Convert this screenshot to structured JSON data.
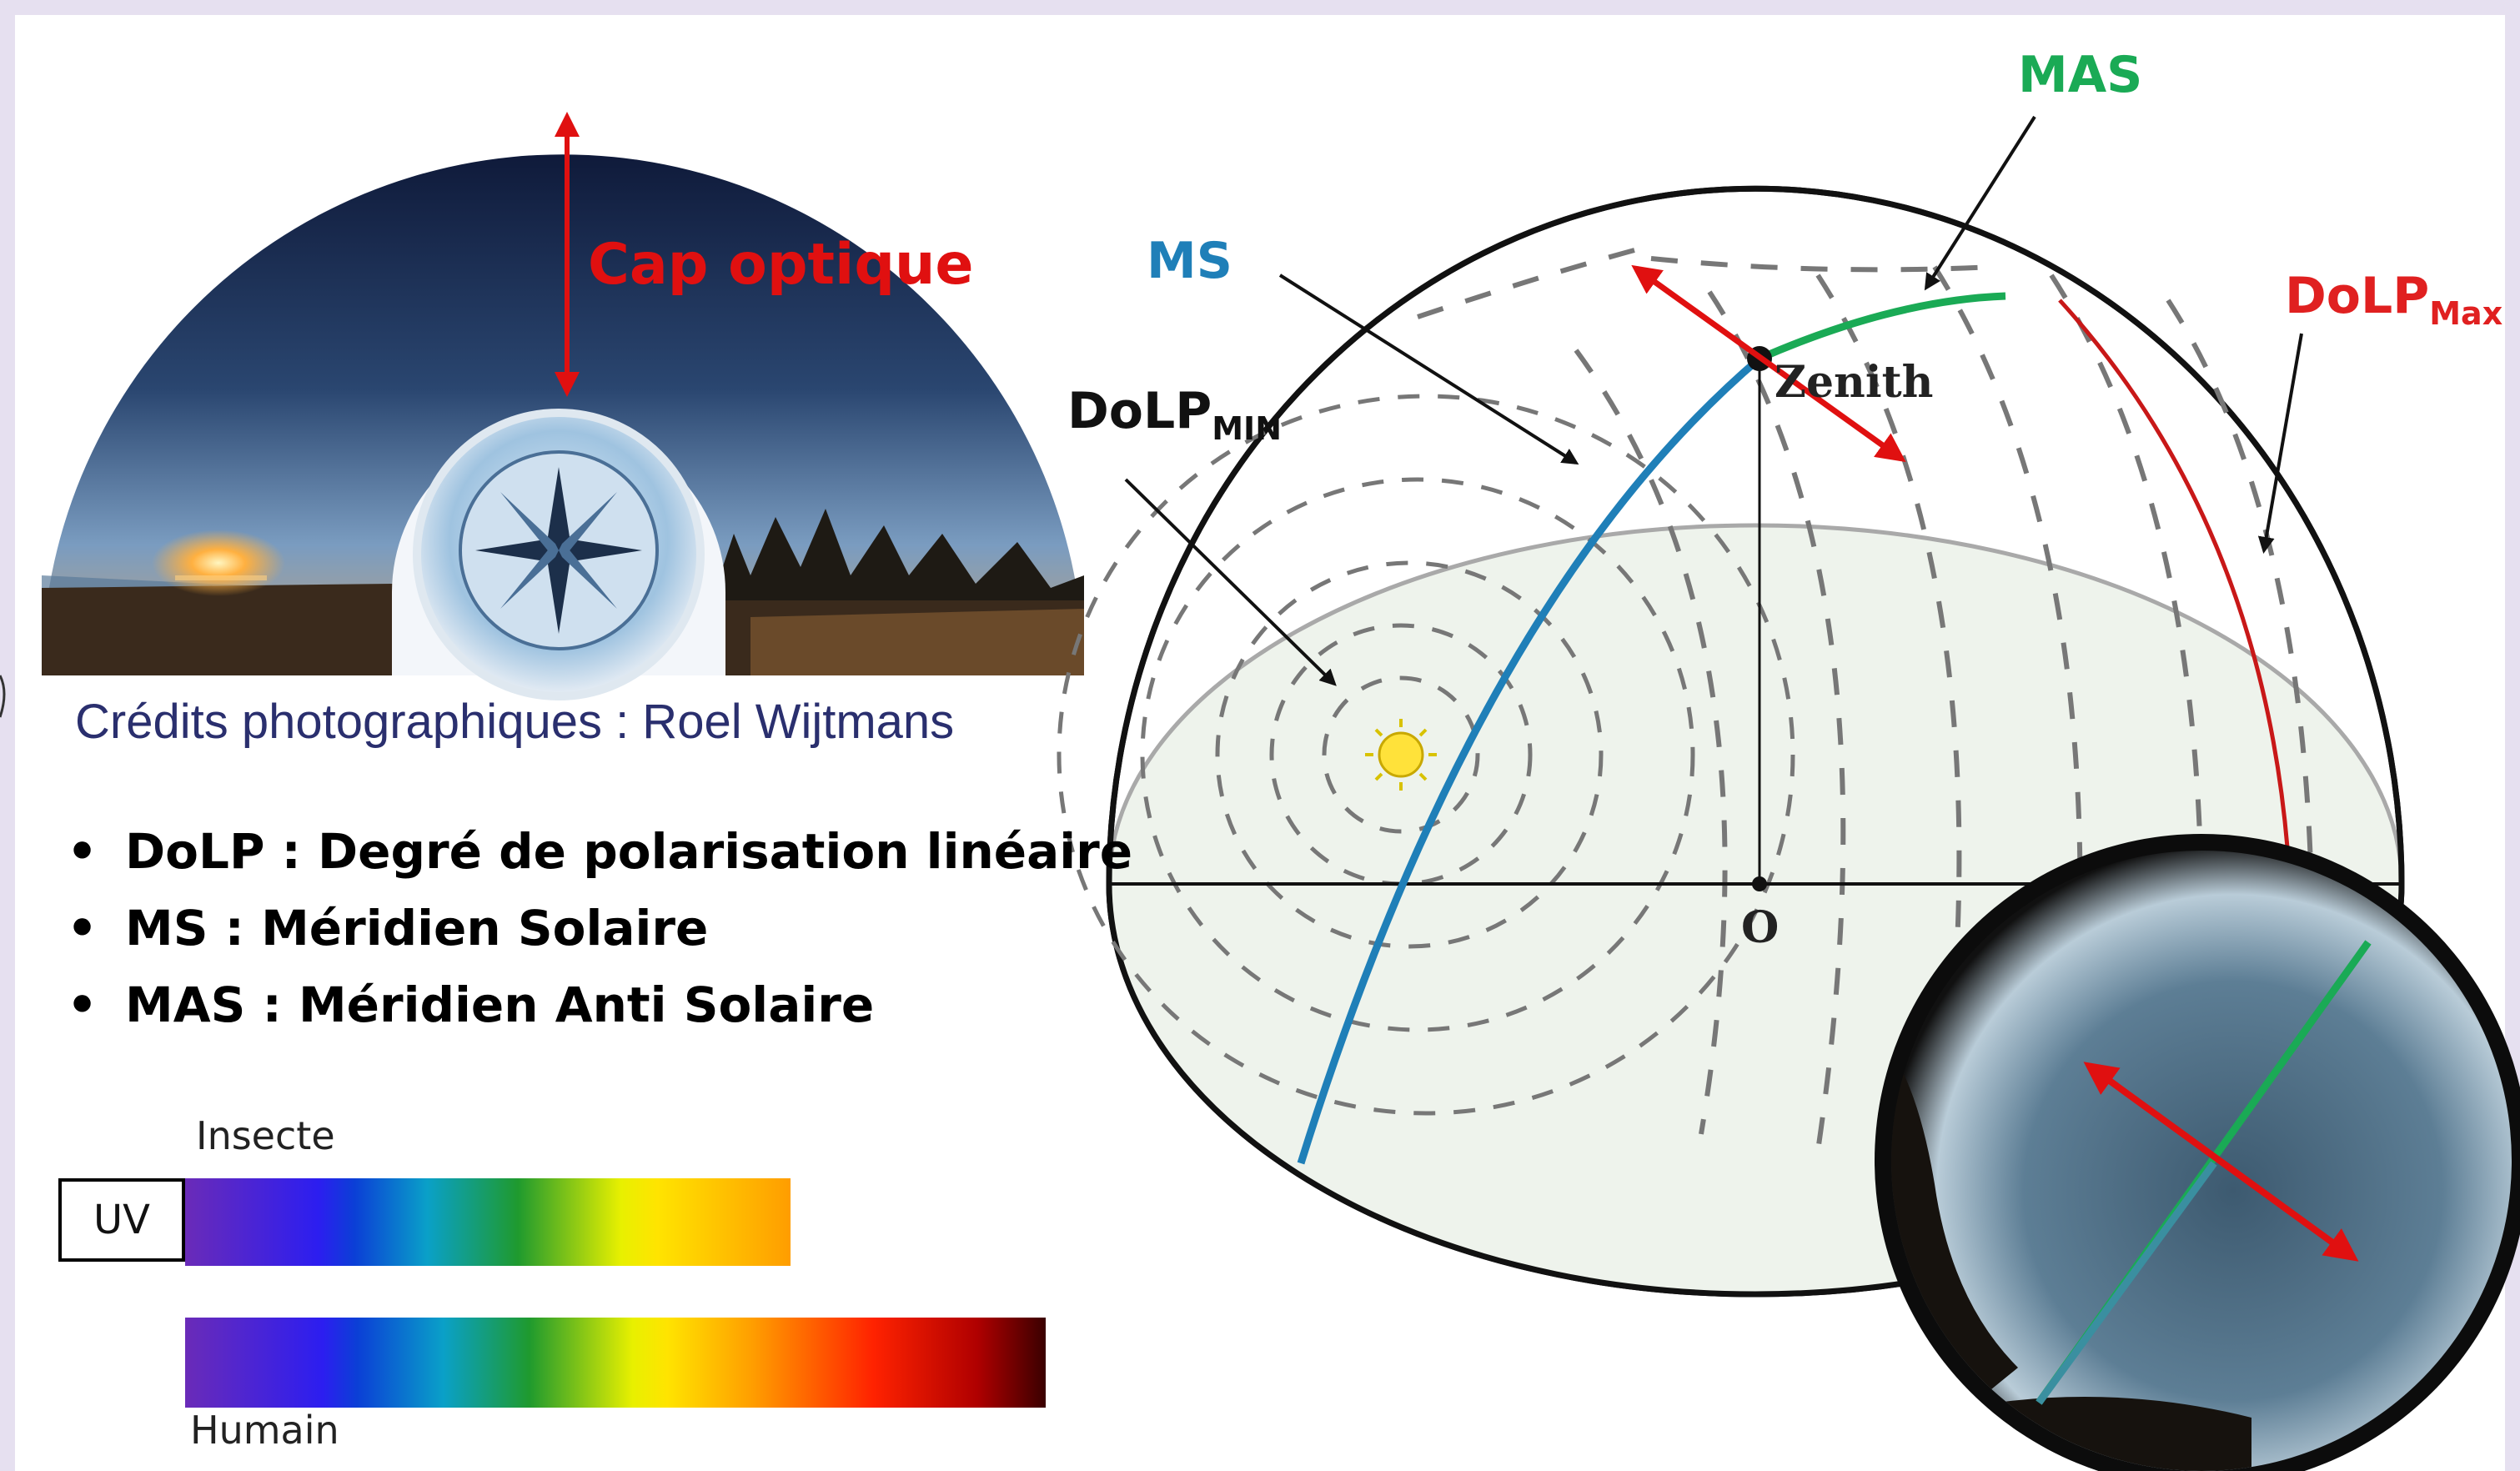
{
  "photo": {
    "cap_label": "Cap optique",
    "credits": "Crédits photographiques : Roel Wijtmans"
  },
  "definitions": [
    "DoLP : Degré de polarisation linéaire",
    "MS : Méridien Solaire",
    "MAS : Méridien Anti Solaire"
  ],
  "spectrum": {
    "insect_label": "Insecte",
    "uv_label": "UV",
    "human_label": "Humain"
  },
  "sky_diagram": {
    "ms_label": "MS",
    "mas_label": "MAS",
    "dolp_max": {
      "base": "DoLP",
      "sub": "Max"
    },
    "dolp_min": {
      "base": "DoLP",
      "sub": "MIN"
    },
    "zenith_label": "Zenith",
    "origin_label": "O"
  },
  "colors": {
    "ms": "#1f7fb8",
    "mas": "#1aaa55",
    "dolp_max": "#e02020",
    "arrow": "#e01010"
  }
}
